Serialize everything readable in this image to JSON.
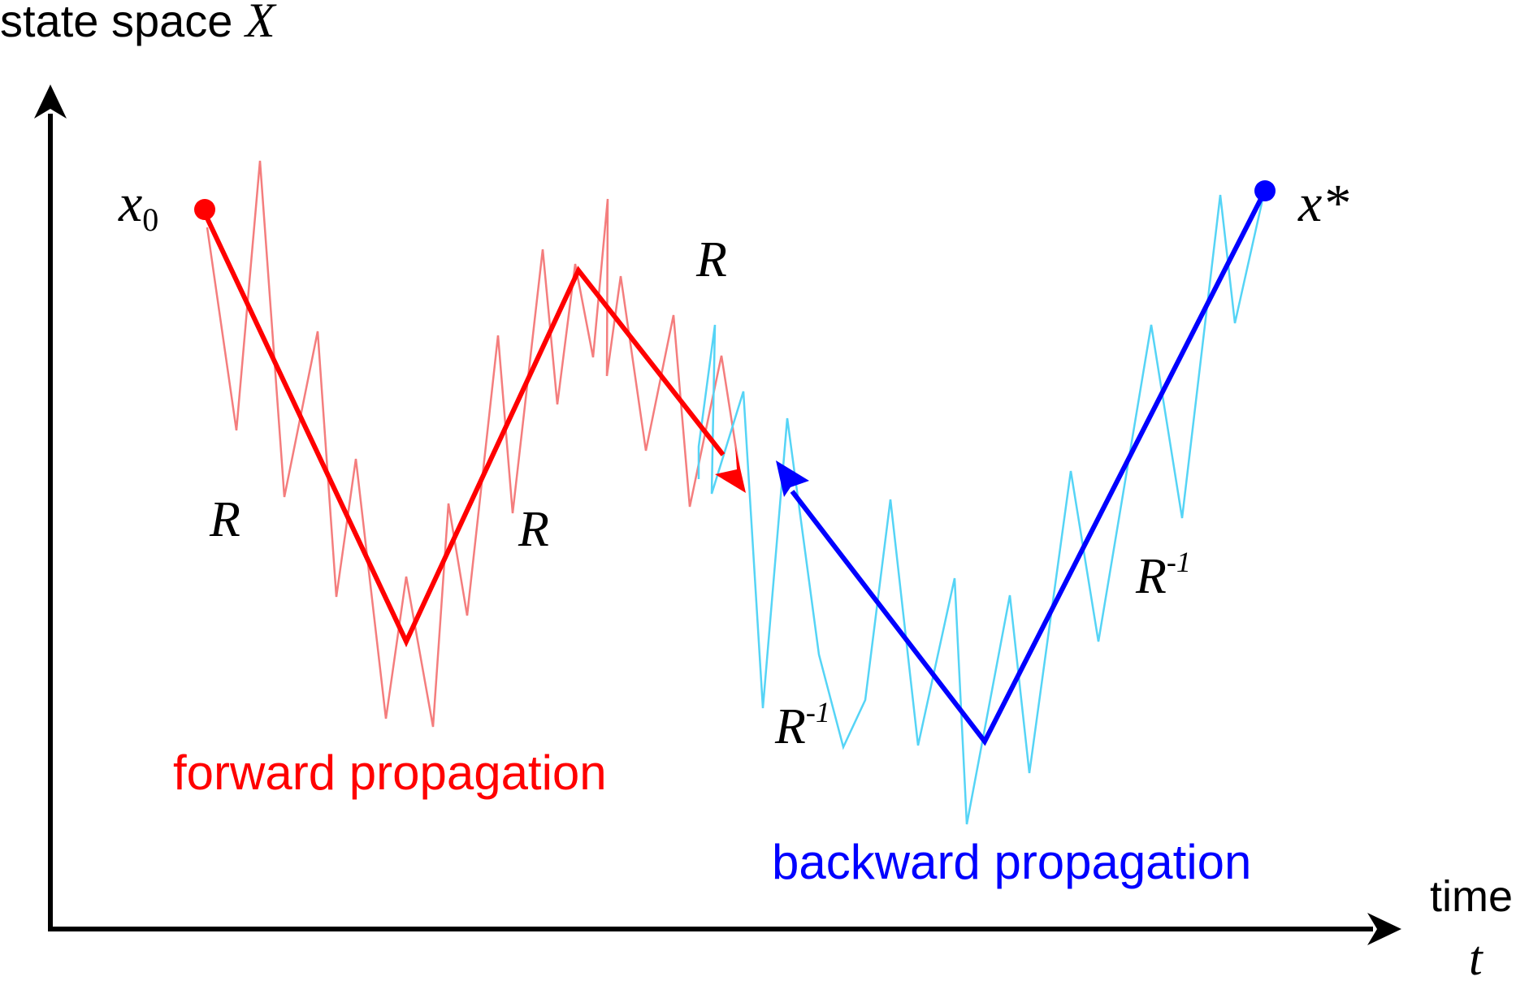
{
  "y_axis": {
    "label_prefix": "state space ",
    "label_symbol": "X"
  },
  "x_axis": {
    "label_word": "time",
    "label_symbol": "t"
  },
  "start_point": {
    "symbol": "x",
    "subscript": "0",
    "color": "#ff0000"
  },
  "end_point": {
    "symbol": "x*",
    "color": "#0000ff"
  },
  "forward": {
    "caption": "forward propagation",
    "operator_labels": [
      "R",
      "R",
      "R"
    ],
    "color": "#ff0000",
    "noise_color": "#f47d7d"
  },
  "backward": {
    "caption": "backward propagation",
    "operator_labels": [
      {
        "base": "R",
        "sup": "-1"
      },
      {
        "base": "R",
        "sup": "-1"
      }
    ],
    "color": "#0000ff",
    "noise_color": "#55d4f6"
  },
  "axis_color": "#000000"
}
